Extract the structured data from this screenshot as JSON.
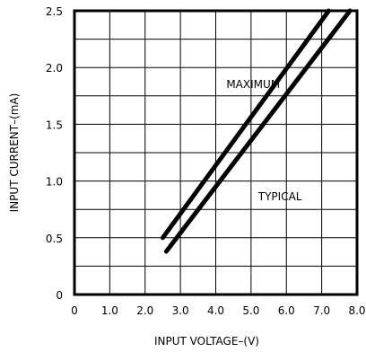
{
  "chart_data": {
    "type": "line",
    "xlabel": "INPUT VOLTAGE–(V)",
    "ylabel": "INPUT CURRENT–(mA)",
    "xlim": [
      0,
      8
    ],
    "ylim": [
      0,
      2.5
    ],
    "x_ticks": [
      0,
      1,
      2,
      3,
      4,
      5,
      6,
      7,
      8
    ],
    "x_tick_labels": [
      "0",
      "1.0",
      "2.0",
      "3.0",
      "4.0",
      "5.0",
      "6.0",
      "7.0",
      "8.0"
    ],
    "y_ticks": [
      0,
      0.5,
      1.0,
      1.5,
      2.0,
      2.5
    ],
    "y_tick_labels": [
      "0",
      "0.5",
      "1.0",
      "1.5",
      "2.0",
      "2.5"
    ],
    "x_minor_step": 1,
    "y_minor_step": 0.25,
    "grid": true,
    "series": [
      {
        "name": "MAXIMUM",
        "x": [
          2.5,
          7.2
        ],
        "y": [
          0.5,
          2.5
        ]
      },
      {
        "name": "TYPICAL",
        "x": [
          2.6,
          7.8
        ],
        "y": [
          0.38,
          2.5
        ]
      }
    ],
    "annotations": [
      {
        "text": "MAXIMUM",
        "x": 4.3,
        "y": 1.82
      },
      {
        "text": "TYPICAL",
        "x": 5.2,
        "y": 0.83
      }
    ]
  }
}
